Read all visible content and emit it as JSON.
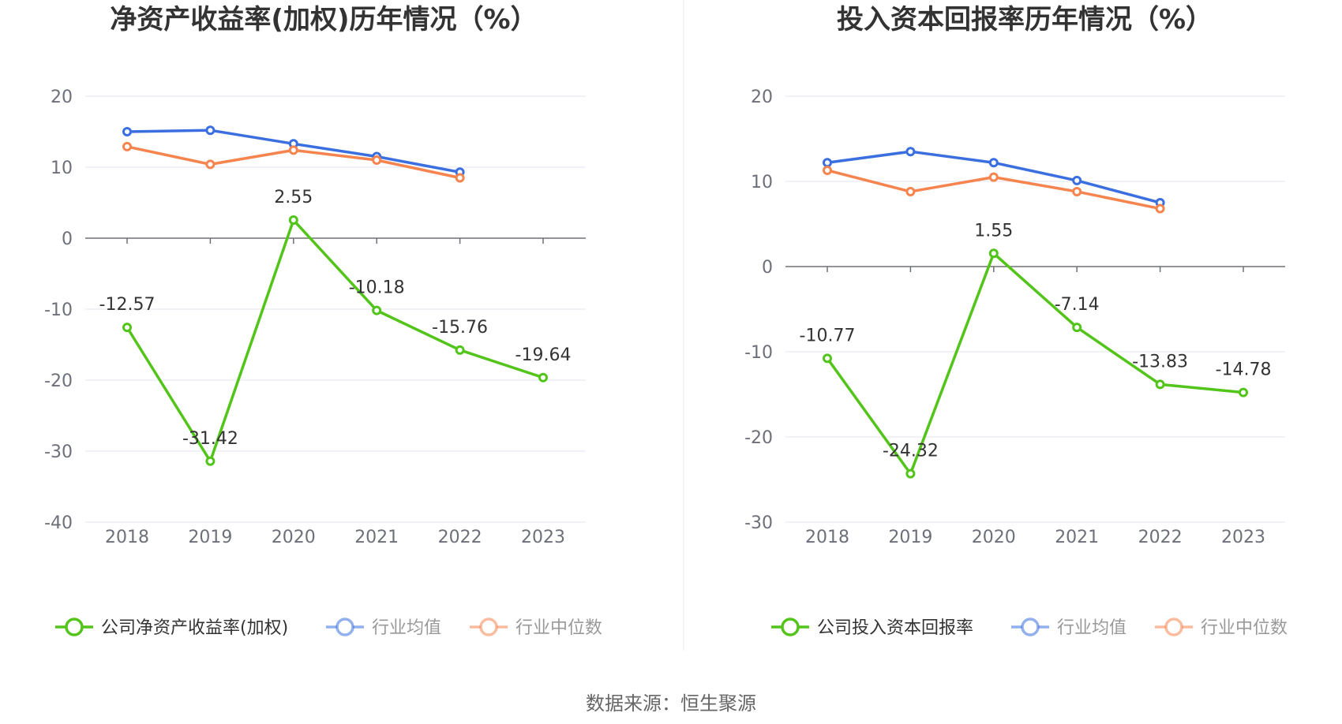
{
  "chart_data": [
    {
      "type": "line",
      "title": "净资产收益率(加权)历年情况（%）",
      "categories": [
        "2018",
        "2019",
        "2020",
        "2021",
        "2022",
        "2023"
      ],
      "ylim": [
        -40,
        20
      ],
      "yticks": [
        20,
        10,
        0,
        -10,
        -20,
        -30,
        -40
      ],
      "series": [
        {
          "name": "公司净资产收益率(加权)",
          "color": "#52c41a",
          "values": [
            -12.57,
            -31.42,
            2.55,
            -10.18,
            -15.76,
            -19.64
          ],
          "labels": [
            "-12.57",
            "-31.42",
            "2.55",
            "-10.18",
            "-15.76",
            "-19.64"
          ]
        },
        {
          "name": "行业均值",
          "color": "#3b6fe0",
          "values": [
            15.0,
            15.2,
            13.3,
            11.5,
            9.3,
            null
          ]
        },
        {
          "name": "行业中位数",
          "color": "#f5844e",
          "values": [
            12.9,
            10.4,
            12.4,
            11.0,
            8.5,
            null
          ]
        }
      ]
    },
    {
      "type": "line",
      "title": "投入资本回报率历年情况（%）",
      "categories": [
        "2018",
        "2019",
        "2020",
        "2021",
        "2022",
        "2023"
      ],
      "ylim": [
        -30,
        20
      ],
      "yticks": [
        20,
        10,
        0,
        -10,
        -20,
        -30
      ],
      "series": [
        {
          "name": "公司投入资本回报率",
          "color": "#52c41a",
          "values": [
            -10.77,
            -24.32,
            1.55,
            -7.14,
            -13.83,
            -14.78
          ],
          "labels": [
            "-10.77",
            "-24.32",
            "1.55",
            "-7.14",
            "-13.83",
            "-14.78"
          ]
        },
        {
          "name": "行业均值",
          "color": "#3b6fe0",
          "values": [
            12.2,
            13.5,
            12.2,
            10.1,
            7.5,
            null
          ]
        },
        {
          "name": "行业中位数",
          "color": "#f5844e",
          "values": [
            11.3,
            8.8,
            10.5,
            8.8,
            6.8,
            null
          ]
        }
      ]
    }
  ],
  "footer": {
    "source": "数据来源：恒生聚源"
  }
}
